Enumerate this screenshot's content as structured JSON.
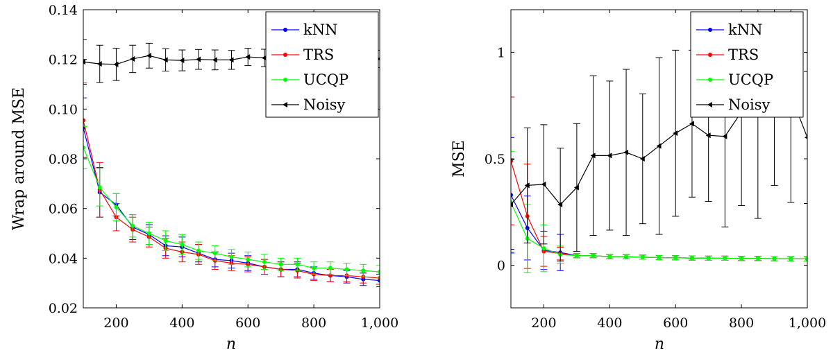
{
  "chart_data": [
    {
      "type": "line",
      "xlabel": "n",
      "ylabel": "Wrap around MSE",
      "xlim": [
        100,
        1000
      ],
      "ylim": [
        0.02,
        0.14
      ],
      "x_ticks": [
        200,
        400,
        600,
        800,
        1000
      ],
      "x_tick_labels": [
        "200",
        "400",
        "600",
        "800",
        "1,000"
      ],
      "y_ticks": [
        0.02,
        0.04,
        0.06,
        0.08,
        0.1,
        0.12,
        0.14
      ],
      "y_tick_labels": [
        "0.02",
        "0.04",
        "0.06",
        "0.08",
        "0.10",
        "0.12",
        "0.14"
      ],
      "grid": false,
      "legend": "top-right",
      "x": [
        100,
        150,
        200,
        250,
        300,
        350,
        400,
        450,
        500,
        550,
        600,
        650,
        700,
        750,
        800,
        850,
        900,
        950,
        1000
      ],
      "series": [
        {
          "name": "kNN",
          "color": "#0000ff",
          "marker": "circle",
          "values": [
            0.0925,
            0.0665,
            0.0615,
            0.0525,
            0.0495,
            0.045,
            0.0445,
            0.042,
            0.0395,
            0.039,
            0.038,
            0.0365,
            0.0355,
            0.0355,
            0.034,
            0.033,
            0.0325,
            0.0315,
            0.031
          ],
          "error": [
            0.012,
            0.01,
            0.0045,
            0.005,
            0.004,
            0.004,
            0.004,
            0.0035,
            0.003,
            0.003,
            0.003,
            0.003,
            0.003,
            0.003,
            0.0025,
            0.0025,
            0.0025,
            0.0025,
            0.0025
          ]
        },
        {
          "name": "TRS",
          "color": "#ff0000",
          "marker": "circle",
          "values": [
            0.0955,
            0.0675,
            0.0565,
            0.0515,
            0.0485,
            0.044,
            0.0425,
            0.0415,
            0.039,
            0.038,
            0.0375,
            0.0365,
            0.0355,
            0.035,
            0.0335,
            0.033,
            0.033,
            0.0325,
            0.032
          ],
          "error": [
            0.015,
            0.011,
            0.0055,
            0.005,
            0.004,
            0.004,
            0.004,
            0.004,
            0.0035,
            0.003,
            0.003,
            0.003,
            0.003,
            0.003,
            0.0025,
            0.0025,
            0.0025,
            0.0025,
            0.0025
          ]
        },
        {
          "name": "UCQP",
          "color": "#00ff00",
          "marker": "circle",
          "values": [
            0.0845,
            0.0685,
            0.0605,
            0.053,
            0.05,
            0.047,
            0.0455,
            0.043,
            0.042,
            0.0405,
            0.0395,
            0.0385,
            0.0375,
            0.0375,
            0.036,
            0.036,
            0.0355,
            0.035,
            0.0345
          ],
          "error": [
            0.0085,
            0.0075,
            0.0055,
            0.0045,
            0.0045,
            0.004,
            0.004,
            0.0035,
            0.003,
            0.003,
            0.003,
            0.003,
            0.0025,
            0.0025,
            0.0025,
            0.0025,
            0.0025,
            0.0025,
            0.0025
          ]
        },
        {
          "name": "Noisy",
          "color": "#000000",
          "marker": "triangle-left",
          "values": [
            0.119,
            0.1182,
            0.118,
            0.1202,
            0.1215,
            0.1198,
            0.1196,
            0.12,
            0.1198,
            0.1198,
            0.121,
            0.1206,
            0.12,
            0.1202,
            0.1204,
            0.1204,
            0.1206,
            0.1206,
            0.1202
          ],
          "error": [
            0.009,
            0.0075,
            0.0065,
            0.0055,
            0.005,
            0.0045,
            0.0042,
            0.004,
            0.004,
            0.0038,
            0.0035,
            0.0035,
            0.0035,
            0.0035,
            0.0035,
            0.0035,
            0.0035,
            0.0035,
            0.0035
          ]
        }
      ]
    },
    {
      "type": "line",
      "xlabel": "n",
      "ylabel": "MSE",
      "xlim": [
        100,
        1000
      ],
      "ylim": [
        -0.2,
        1.2
      ],
      "x_ticks": [
        200,
        400,
        600,
        800,
        1000
      ],
      "x_tick_labels": [
        "200",
        "400",
        "600",
        "800",
        "1,000"
      ],
      "y_ticks": [
        0,
        0.5,
        1
      ],
      "y_tick_labels": [
        "0",
        "0.5",
        "1"
      ],
      "grid": false,
      "legend": "top-right",
      "x": [
        100,
        150,
        200,
        250,
        300,
        350,
        400,
        450,
        500,
        550,
        600,
        650,
        700,
        750,
        800,
        850,
        900,
        950,
        1000
      ],
      "series": [
        {
          "name": "kNN",
          "color": "#0000ff",
          "marker": "circle",
          "values": [
            0.33,
            0.175,
            0.07,
            0.06,
            0.045,
            0.045,
            0.04,
            0.04,
            0.038,
            0.036,
            0.035,
            0.034,
            0.033,
            0.033,
            0.032,
            0.032,
            0.031,
            0.03,
            0.03
          ],
          "error": [
            0.27,
            0.15,
            0.09,
            0.085,
            0.01,
            0.01,
            0.01,
            0.01,
            0.01,
            0.01,
            0.01,
            0.01,
            0.01,
            0.01,
            0.01,
            0.01,
            0.01,
            0.01,
            0.01
          ]
        },
        {
          "name": "TRS",
          "color": "#ff0000",
          "marker": "circle",
          "values": [
            0.49,
            0.23,
            0.065,
            0.055,
            0.045,
            0.045,
            0.04,
            0.04,
            0.038,
            0.036,
            0.035,
            0.034,
            0.033,
            0.033,
            0.032,
            0.032,
            0.031,
            0.03,
            0.03
          ],
          "error": [
            0.3,
            0.245,
            0.07,
            0.03,
            0.01,
            0.01,
            0.01,
            0.01,
            0.01,
            0.01,
            0.01,
            0.01,
            0.01,
            0.01,
            0.01,
            0.01,
            0.01,
            0.01,
            0.01
          ]
        },
        {
          "name": "UCQP",
          "color": "#00ff00",
          "marker": "circle",
          "values": [
            0.295,
            0.125,
            0.08,
            0.05,
            0.045,
            0.045,
            0.04,
            0.04,
            0.038,
            0.036,
            0.035,
            0.034,
            0.033,
            0.033,
            0.032,
            0.032,
            0.031,
            0.03,
            0.03
          ],
          "error": [
            0.24,
            0.16,
            0.11,
            0.04,
            0.01,
            0.01,
            0.01,
            0.01,
            0.01,
            0.01,
            0.01,
            0.01,
            0.01,
            0.01,
            0.01,
            0.01,
            0.01,
            0.01,
            0.01
          ]
        },
        {
          "name": "Noisy",
          "color": "#000000",
          "marker": "triangle-left",
          "values": [
            0.285,
            0.375,
            0.38,
            0.285,
            0.365,
            0.515,
            0.515,
            0.53,
            0.5,
            0.56,
            0.62,
            0.665,
            0.61,
            0.605,
            0.72,
            0.77,
            0.8,
            0.8,
            0.6
          ],
          "error": [
            0.21,
            0.27,
            0.28,
            0.265,
            0.3,
            0.375,
            0.35,
            0.39,
            0.305,
            0.415,
            0.39,
            0.345,
            0.31,
            0.425,
            0.44,
            0.55,
            0.425,
            0.505,
            0.31
          ]
        }
      ]
    }
  ]
}
